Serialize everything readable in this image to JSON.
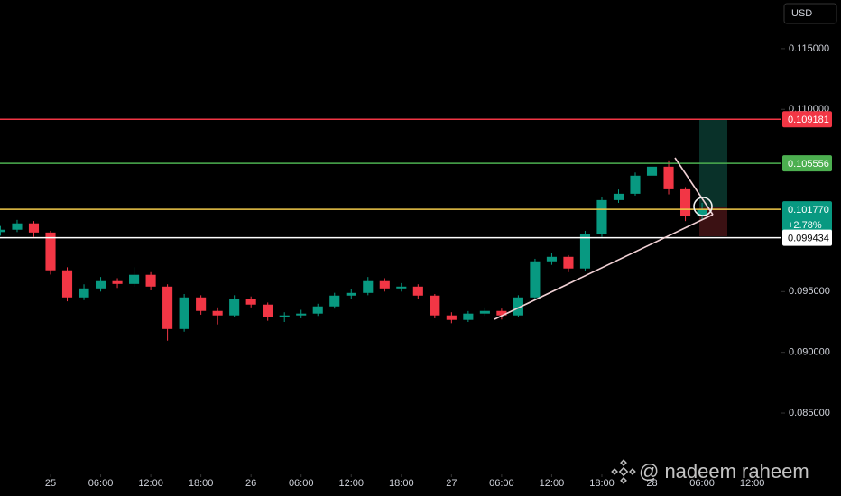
{
  "chart_data": {
    "type": "candlestick",
    "currency": "USD",
    "x": [
      -6,
      -4,
      -2,
      0,
      2,
      4,
      6,
      8,
      10,
      12,
      14,
      16,
      18,
      20,
      22,
      24,
      26,
      28,
      30,
      32,
      34,
      36,
      38,
      40,
      42,
      44,
      46,
      48,
      50,
      52,
      54,
      56,
      58,
      60,
      62,
      64,
      66,
      68,
      70,
      72,
      74,
      76,
      78
    ],
    "open": [
      0.0999,
      0.10009,
      0.10061,
      0.09986,
      0.09675,
      0.09452,
      0.09526,
      0.09586,
      0.09563,
      0.09638,
      0.09541,
      0.09192,
      0.09452,
      0.09341,
      0.09304,
      0.09437,
      0.09393,
      0.09289,
      0.09304,
      0.09319,
      0.09378,
      0.09467,
      0.09489,
      0.09586,
      0.09526,
      0.09541,
      0.09467,
      0.09304,
      0.09267,
      0.09319,
      0.09341,
      0.09304,
      0.09452,
      0.09749,
      0.09786,
      0.0969,
      0.09972,
      0.10253,
      0.10305,
      0.10454,
      0.10528,
      0.10342,
      0.1012
    ],
    "high": [
      0.1004,
      0.1009,
      0.1008,
      0.1,
      0.097,
      0.0956,
      0.0962,
      0.0961,
      0.097,
      0.0966,
      0.0956,
      0.0948,
      0.0947,
      0.0937,
      0.0947,
      0.0946,
      0.0941,
      0.0933,
      0.0935,
      0.094,
      0.0949,
      0.0952,
      0.0962,
      0.0961,
      0.0957,
      0.0956,
      0.0948,
      0.0933,
      0.0934,
      0.0937,
      0.0936,
      0.0947,
      0.0977,
      0.0982,
      0.098,
      0.1,
      0.1028,
      0.1034,
      0.1048,
      0.10654,
      0.1058,
      0.1036,
      0.1023
    ],
    "low": [
      0.0996,
      0.0999,
      0.0995,
      0.0964,
      0.0942,
      0.0943,
      0.095,
      0.0953,
      0.0954,
      0.0951,
      0.09096,
      0.0917,
      0.0931,
      0.0923,
      0.0929,
      0.0937,
      0.0926,
      0.0925,
      0.0928,
      0.093,
      0.0936,
      0.0944,
      0.0947,
      0.095,
      0.095,
      0.0944,
      0.0928,
      0.0924,
      0.0925,
      0.093,
      0.0927,
      0.0929,
      0.0944,
      0.0972,
      0.0966,
      0.0967,
      0.0995,
      0.1023,
      0.1029,
      0.1042,
      0.103,
      0.1008,
      0.1009
    ],
    "close": [
      0.10009,
      0.10061,
      0.09986,
      0.09675,
      0.09452,
      0.09526,
      0.09586,
      0.09563,
      0.09638,
      0.09541,
      0.09192,
      0.09452,
      0.09341,
      0.09304,
      0.09437,
      0.09393,
      0.09289,
      0.09304,
      0.09319,
      0.09378,
      0.09467,
      0.09489,
      0.09586,
      0.09526,
      0.09541,
      0.09467,
      0.09304,
      0.09267,
      0.09319,
      0.09341,
      0.09304,
      0.09452,
      0.09749,
      0.09786,
      0.0969,
      0.09972,
      0.10253,
      0.10305,
      0.10454,
      0.10528,
      0.10342,
      0.1012,
      0.10177
    ],
    "up_color": "#089981",
    "down_color": "#f23645",
    "xlim": [
      -6.05,
      87.5
    ],
    "ylim": [
      0.0804,
      0.119
    ],
    "xticks": [
      {
        "value": 0,
        "label": "25"
      },
      {
        "value": 6,
        "label": "06:00"
      },
      {
        "value": 12,
        "label": "12:00"
      },
      {
        "value": 18,
        "label": "18:00"
      },
      {
        "value": 24,
        "label": "26"
      },
      {
        "value": 30,
        "label": "06:00"
      },
      {
        "value": 36,
        "label": "12:00"
      },
      {
        "value": 42,
        "label": "18:00"
      },
      {
        "value": 48,
        "label": "27"
      },
      {
        "value": 54,
        "label": "06:00"
      },
      {
        "value": 60,
        "label": "12:00"
      },
      {
        "value": 66,
        "label": "18:00"
      },
      {
        "value": 72,
        "label": "28"
      },
      {
        "value": 78,
        "label": "06:00"
      },
      {
        "value": 84,
        "label": "12:00"
      }
    ],
    "yticks": [
      {
        "value": 0.115,
        "label": "0.115000"
      },
      {
        "value": 0.11,
        "label": "0.110000"
      },
      {
        "value": 0.095,
        "label": "0.095000"
      },
      {
        "value": 0.09,
        "label": "0.090000"
      },
      {
        "value": 0.085,
        "label": "0.085000"
      }
    ],
    "levels": [
      {
        "value": 0.109181,
        "label": "0.109181",
        "color": "#f23645"
      },
      {
        "value": 0.105556,
        "label": "0.105556",
        "color": "#4caf50"
      },
      {
        "value": 0.10177,
        "label": "0.101770",
        "color": "#f0c94a"
      },
      {
        "value": 0.099434,
        "label": "0.099434",
        "color": "#ffffff"
      }
    ],
    "change_label": "+2.78%",
    "watermark": "@ nadeem raheem"
  }
}
